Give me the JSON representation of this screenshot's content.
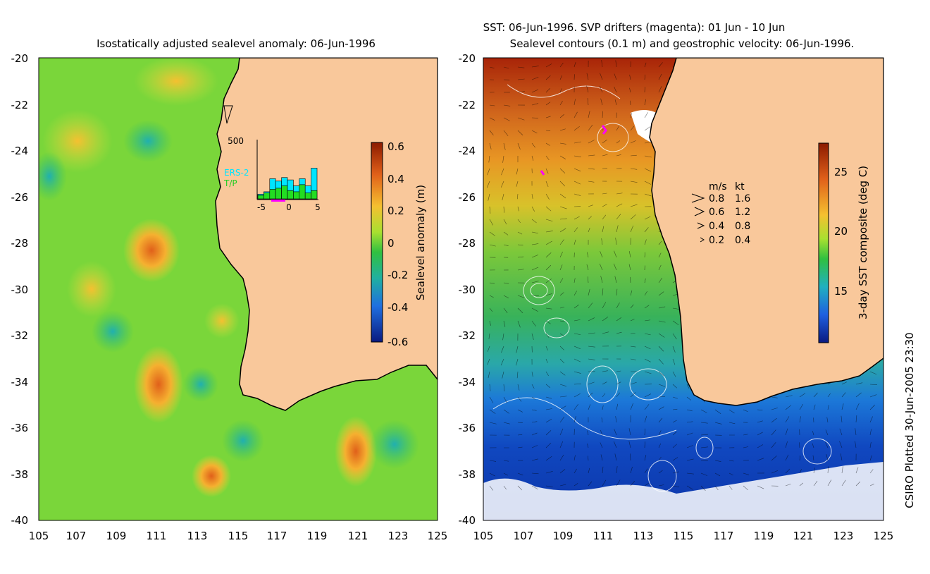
{
  "left_panel": {
    "title": "Isostatically adjusted sealevel anomaly: 06-Jun-1996",
    "y_ticks": [
      "-20",
      "-22",
      "-24",
      "-26",
      "-28",
      "-30",
      "-32",
      "-34",
      "-36",
      "-38",
      "-40"
    ],
    "x_ticks": [
      "105",
      "107",
      "109",
      "111",
      "113",
      "115",
      "117",
      "119",
      "121",
      "123",
      "125"
    ],
    "colorbar": {
      "label": "Sealevel anomaly (m)",
      "ticks": [
        "0.6",
        "0.4",
        "0.2",
        "0",
        "-0.2",
        "-0.4",
        "-0.6"
      ]
    },
    "inset": {
      "ymax_label": "500",
      "legend": [
        "ERS-2",
        "T/P"
      ],
      "legend_colors": [
        "#00e5ff",
        "#22dd22"
      ],
      "x_ticks": [
        "-5",
        "0",
        "5"
      ],
      "bars_ers2": [
        40,
        60,
        170,
        150,
        180,
        160,
        110,
        170,
        110,
        260
      ],
      "bars_tp": [
        30,
        50,
        80,
        90,
        110,
        70,
        60,
        120,
        50,
        70
      ]
    }
  },
  "right_panel": {
    "title_line1": "SST: 06-Jun-1996. SVP drifters (magenta): 01 Jun - 10 Jun",
    "title_line2": "Sealevel contours (0.1 m) and geostrophic velocity: 06-Jun-1996.",
    "y_ticks": [
      "-20",
      "-22",
      "-24",
      "-26",
      "-28",
      "-30",
      "-32",
      "-34",
      "-36",
      "-38",
      "-40"
    ],
    "x_ticks": [
      "105",
      "107",
      "109",
      "111",
      "113",
      "115",
      "117",
      "119",
      "121",
      "123",
      "125"
    ],
    "velocity_legend": {
      "header_ms": "m/s",
      "header_kt": "kt",
      "rows": [
        {
          "ms": "0.8",
          "kt": "1.6"
        },
        {
          "ms": "0.6",
          "kt": "1.2"
        },
        {
          "ms": "0.4",
          "kt": "0.8"
        },
        {
          "ms": "0.2",
          "kt": "0.4"
        }
      ]
    },
    "colorbar": {
      "label": "3-day SST composite (deg C)",
      "ticks": [
        "25",
        "20",
        "15"
      ]
    }
  },
  "footer": "CSIRO Plotted 30-Jun-2005 23:30",
  "colors": {
    "land": "#f9c89b",
    "ocean_base": "#7ad63a",
    "sst_warm": "#c83a10",
    "sst_cool": "#1060d0"
  }
}
